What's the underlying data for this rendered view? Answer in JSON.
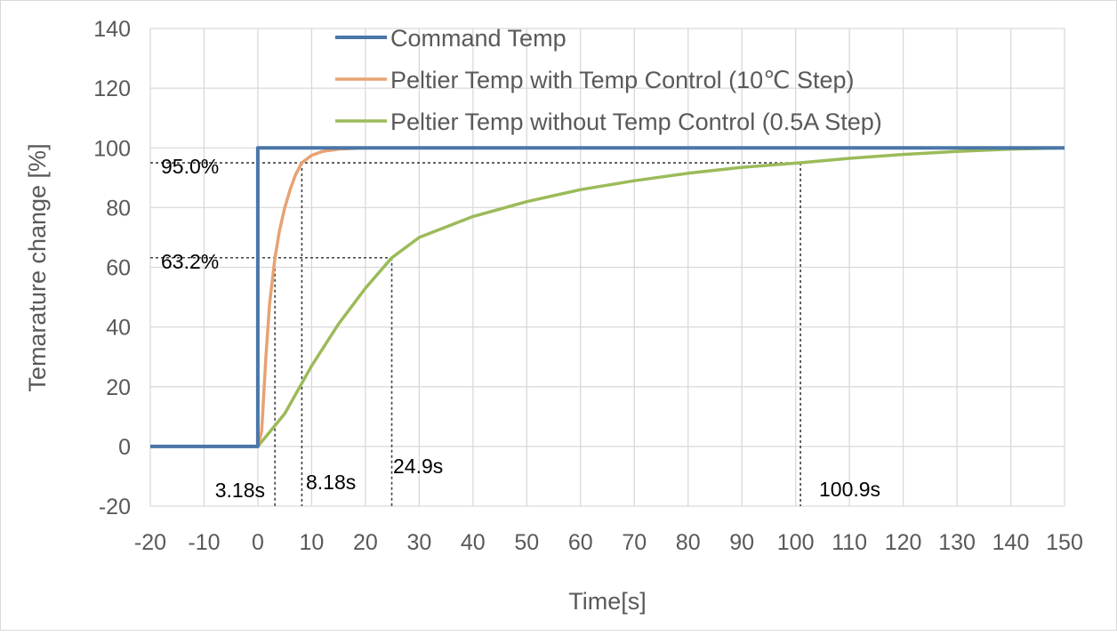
{
  "chart_data": {
    "type": "line",
    "title": "",
    "xlabel": "Time[s]",
    "ylabel": "Temarature change [%]",
    "xlim": [
      -20,
      150
    ],
    "ylim": [
      -20,
      140
    ],
    "xticks": [
      -20,
      -10,
      0,
      10,
      20,
      30,
      40,
      50,
      60,
      70,
      80,
      90,
      100,
      110,
      120,
      130,
      140,
      150
    ],
    "yticks": [
      -20,
      0,
      20,
      40,
      60,
      80,
      100,
      120,
      140
    ],
    "grid": true,
    "legend_placement": "top-center",
    "series": [
      {
        "name": "Command Temp",
        "color": "#4a76a8",
        "x": [
          -20,
          0,
          0,
          150
        ],
        "y": [
          0,
          0,
          100,
          100
        ]
      },
      {
        "name": "Peltier Temp with Temp Control (10℃ Step)",
        "color": "#e8a273",
        "x": [
          -20,
          0,
          0.7,
          1.5,
          2.2,
          3.18,
          4,
          5,
          6,
          7,
          8.18,
          10,
          12,
          15,
          20,
          150
        ],
        "y": [
          0,
          0,
          5,
          30,
          48,
          63.2,
          72,
          80,
          86,
          91,
          95,
          97.5,
          98.8,
          99.6,
          100,
          100
        ]
      },
      {
        "name": "Peltier Temp without Temp Control (0.5A Step)",
        "color": "#9bbb59",
        "x": [
          -20,
          0,
          5,
          10,
          15,
          20,
          24.9,
          30,
          40,
          50,
          60,
          70,
          80,
          90,
          100.9,
          110,
          120,
          130,
          140,
          150
        ],
        "y": [
          0,
          0,
          11,
          27,
          41,
          53,
          63.2,
          70,
          77,
          82,
          86,
          89,
          91.5,
          93.5,
          95,
          96.5,
          97.8,
          98.8,
          99.6,
          100
        ]
      }
    ],
    "annotations": {
      "levels": [
        {
          "label": "95.0%",
          "y": 95,
          "x_end": 100.9
        },
        {
          "label": "63.2%",
          "y": 63.2,
          "x_end": 24.9
        }
      ],
      "times": [
        {
          "label": "3.18s",
          "x": 3.18,
          "y": 63.2
        },
        {
          "label": "8.18s",
          "x": 8.18,
          "y": 95
        },
        {
          "label": "24.9s",
          "x": 24.9,
          "y": 63.2
        },
        {
          "label": "100.9s",
          "x": 100.9,
          "y": 95
        }
      ]
    }
  }
}
